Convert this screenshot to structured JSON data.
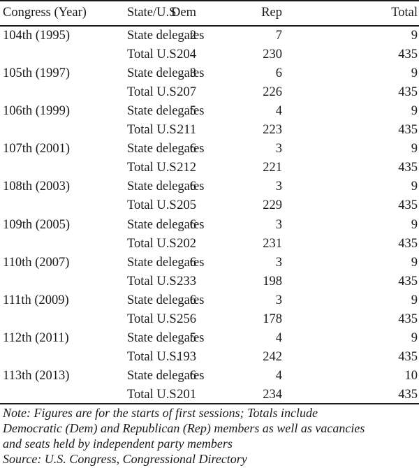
{
  "header": {
    "congress": "Congress (Year)",
    "state": "State/U.S",
    "dem": "Dem",
    "rep": "Rep",
    "total": "Total"
  },
  "rows": [
    {
      "congress": "104th (1995)",
      "state": "State delegates",
      "dem": "2",
      "rep": "7",
      "total": "9"
    },
    {
      "congress": "",
      "state": "Total U.S.",
      "dem": "204",
      "rep": "230",
      "total": "435"
    },
    {
      "congress": "105th (1997)",
      "state": "State delegates",
      "dem": "3",
      "rep": "6",
      "total": "9"
    },
    {
      "congress": "",
      "state": "Total U.S.",
      "dem": "207",
      "rep": "226",
      "total": "435"
    },
    {
      "congress": "106th (1999)",
      "state": "State delegates",
      "dem": "5",
      "rep": "4",
      "total": "9"
    },
    {
      "congress": "",
      "state": "Total U.S.",
      "dem": "211",
      "rep": "223",
      "total": "435"
    },
    {
      "congress": "107th (2001)",
      "state": "State delegates",
      "dem": "6",
      "rep": "3",
      "total": "9"
    },
    {
      "congress": "",
      "state": "Total U.S.",
      "dem": "212",
      "rep": "221",
      "total": "435"
    },
    {
      "congress": "108th (2003)",
      "state": "State delegates",
      "dem": "6",
      "rep": "3",
      "total": "9"
    },
    {
      "congress": "",
      "state": "Total U.S.",
      "dem": "205",
      "rep": "229",
      "total": "435"
    },
    {
      "congress": "109th (2005)",
      "state": "State delegates",
      "dem": "6",
      "rep": "3",
      "total": "9"
    },
    {
      "congress": "",
      "state": "Total U.S.",
      "dem": "202",
      "rep": "231",
      "total": "435"
    },
    {
      "congress": "110th (2007)",
      "state": "State delegates",
      "dem": "6",
      "rep": "3",
      "total": "9"
    },
    {
      "congress": "",
      "state": "Total U.S.",
      "dem": "233",
      "rep": "198",
      "total": "435"
    },
    {
      "congress": "111th (2009)",
      "state": "State delegates",
      "dem": "6",
      "rep": "3",
      "total": "9"
    },
    {
      "congress": "",
      "state": "Total U.S.",
      "dem": "256",
      "rep": "178",
      "total": "435"
    },
    {
      "congress": "112th (2011)",
      "state": "State delegates",
      "dem": "5",
      "rep": "4",
      "total": "9"
    },
    {
      "congress": "",
      "state": "Total U.S.",
      "dem": "193",
      "rep": "242",
      "total": "435"
    },
    {
      "congress": "113th (2013)",
      "state": "State delegates",
      "dem": "6",
      "rep": "4",
      "total": "10"
    },
    {
      "congress": "",
      "state": "Total U.S.",
      "dem": "201",
      "rep": "234",
      "total": "435"
    }
  ],
  "note": {
    "lines": [
      "Note: Figures are for the starts of first sessions; Totals include",
      "Democratic (Dem) and Republican (Rep) members as well as vacancies",
      "and seats held by independent party members"
    ],
    "source": "Source: U.S. Congress, Congressional Directory"
  }
}
